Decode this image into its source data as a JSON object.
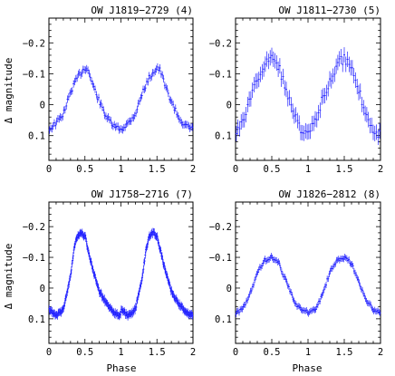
{
  "figure": {
    "ylabel_top": "Δ magnitude",
    "ylabel_bottom": "Δ magnitude",
    "xlabel_left": "Phase",
    "xlabel_right": "Phase"
  },
  "colors": {
    "points": "#2020ff",
    "axes": "#000000",
    "background": "#ffffff"
  },
  "chart_data": [
    {
      "type": "scatter",
      "title": "OW J1819−2729 (4)",
      "xlim": [
        0,
        2
      ],
      "ylim": [
        0.18,
        -0.28
      ],
      "y_inverted": true,
      "xticks": [
        0,
        0.5,
        1,
        1.5,
        2
      ],
      "xtick_labels": [
        "0",
        "0.5",
        "1",
        "1.5",
        "2"
      ],
      "yticks": [
        0.1,
        0,
        -0.1,
        -0.2
      ],
      "ytick_labels": [
        "0.1",
        "0",
        "−0.1",
        "−0.2"
      ],
      "profile_phase": [
        0,
        0.1,
        0.2,
        0.3,
        0.4,
        0.5,
        0.55,
        0.6,
        0.7,
        0.8,
        0.9,
        1.0
      ],
      "profile_mag": [
        0.08,
        0.06,
        0.03,
        -0.04,
        -0.09,
        -0.12,
        -0.11,
        -0.07,
        -0.01,
        0.04,
        0.07,
        0.08
      ],
      "n_points": 60,
      "scatter_mag": 0.008,
      "error_bar_mag": 0.012
    },
    {
      "type": "scatter",
      "title": "OW J1811−2730 (5)",
      "xlim": [
        0,
        2
      ],
      "ylim": [
        0.18,
        -0.28
      ],
      "y_inverted": true,
      "xticks": [
        0,
        0.5,
        1,
        1.5,
        2
      ],
      "xtick_labels": [
        "0",
        "0.5",
        "1",
        "1.5",
        "2"
      ],
      "yticks": [
        0.1,
        0,
        -0.1,
        -0.2
      ],
      "ytick_labels": [
        "0.1",
        "0",
        "−0.1",
        "−0.2"
      ],
      "profile_phase": [
        0,
        0.1,
        0.2,
        0.3,
        0.4,
        0.5,
        0.6,
        0.7,
        0.8,
        0.9,
        1.0
      ],
      "profile_mag": [
        0.1,
        0.05,
        -0.02,
        -0.08,
        -0.13,
        -0.15,
        -0.12,
        -0.05,
        0.03,
        0.08,
        0.1
      ],
      "n_points": 45,
      "scatter_mag": 0.015,
      "error_bar_mag": 0.025
    },
    {
      "type": "scatter",
      "title": "OW J1758−2716 (7)",
      "xlim": [
        0,
        2
      ],
      "ylim": [
        0.18,
        -0.28
      ],
      "y_inverted": true,
      "xticks": [
        0,
        0.5,
        1,
        1.5,
        2
      ],
      "xtick_labels": [
        "0",
        "0.5",
        "1",
        "1.5",
        "2"
      ],
      "yticks": [
        0.1,
        0,
        -0.1,
        -0.2
      ],
      "ytick_labels": [
        "0.1",
        "0",
        "−0.1",
        "−0.2"
      ],
      "profile_phase": [
        0,
        0.1,
        0.2,
        0.3,
        0.35,
        0.4,
        0.45,
        0.5,
        0.55,
        0.6,
        0.7,
        0.8,
        0.9,
        1.0
      ],
      "profile_mag": [
        0.07,
        0.09,
        0.07,
        -0.04,
        -0.13,
        -0.17,
        -0.18,
        -0.17,
        -0.12,
        -0.07,
        0.01,
        0.05,
        0.08,
        0.09
      ],
      "n_points": 120,
      "scatter_mag": 0.006,
      "error_bar_mag": 0.012
    },
    {
      "type": "scatter",
      "title": "OW J1826−2812 (8)",
      "xlim": [
        0,
        2
      ],
      "ylim": [
        0.18,
        -0.28
      ],
      "y_inverted": true,
      "xticks": [
        0,
        0.5,
        1,
        1.5,
        2
      ],
      "xtick_labels": [
        "0",
        "0.5",
        "1",
        "1.5",
        "2"
      ],
      "yticks": [
        0.1,
        0,
        -0.1,
        -0.2
      ],
      "ytick_labels": [
        "0.1",
        "0",
        "−0.1",
        "−0.2"
      ],
      "profile_phase": [
        0,
        0.1,
        0.2,
        0.3,
        0.4,
        0.5,
        0.6,
        0.7,
        0.8,
        0.9,
        1.0
      ],
      "profile_mag": [
        0.08,
        0.07,
        0.02,
        -0.05,
        -0.09,
        -0.1,
        -0.08,
        -0.02,
        0.04,
        0.07,
        0.08
      ],
      "n_points": 70,
      "scatter_mag": 0.006,
      "error_bar_mag": 0.01
    }
  ]
}
